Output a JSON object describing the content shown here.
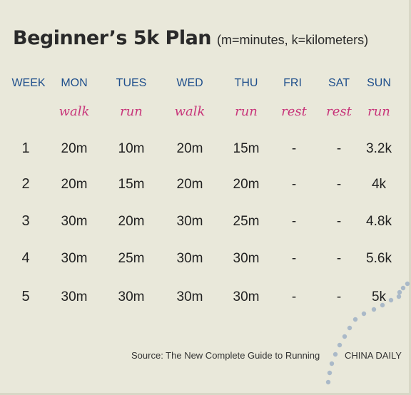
{
  "title": "Beginner’s 5k Plan",
  "subtitle": "(m=minutes, k=kilometers)",
  "headers": [
    "WEEK",
    "MON",
    "TUES",
    "WED",
    "THU",
    "FRI",
    "SAT",
    "SUN"
  ],
  "activities": [
    "walk",
    "run",
    "walk",
    "run",
    "rest",
    "rest",
    "run"
  ],
  "rows": [
    {
      "week": "1",
      "values": [
        "20m",
        "10m",
        "20m",
        "15m",
        "-",
        "-",
        "3.2k"
      ]
    },
    {
      "week": "2",
      "values": [
        "20m",
        "15m",
        "20m",
        "20m",
        "-",
        "-",
        "4k"
      ]
    },
    {
      "week": "3",
      "values": [
        "30m",
        "20m",
        "30m",
        "25m",
        "-",
        "-",
        "4.8k"
      ]
    },
    {
      "week": "4",
      "values": [
        "30m",
        "25m",
        "30m",
        "30m",
        "-",
        "-",
        "5.6k"
      ]
    },
    {
      "week": "5",
      "values": [
        "30m",
        "30m",
        "30m",
        "30m",
        "-",
        "-",
        "5k"
      ]
    }
  ],
  "source": "Source: The New Complete Guide to Running",
  "credit": "CHINA DAILY",
  "colors": {
    "background": "#e9e8da",
    "header": "#1f4f8c",
    "activity": "#c8357a",
    "dots": "#9fb0c4"
  }
}
